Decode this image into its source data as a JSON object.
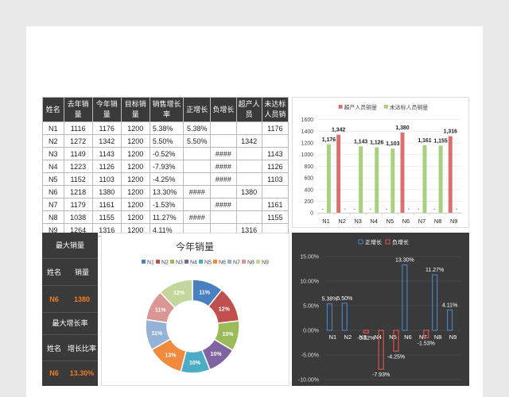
{
  "table": {
    "headers": [
      "姓名",
      "去年销量",
      "今年销量",
      "目标销量",
      "销售增长率",
      "正增长",
      "负增长",
      "超产人员",
      "未达标人员销"
    ],
    "rows": [
      [
        "N1",
        "1116",
        "1176",
        "1200",
        "5.38%",
        "5.38%",
        "",
        "",
        "1176"
      ],
      [
        "N2",
        "1272",
        "1342",
        "1200",
        "5.50%",
        "5.50%",
        "",
        "1342",
        ""
      ],
      [
        "N3",
        "1149",
        "1143",
        "1200",
        "-0.52%",
        "",
        "####",
        "",
        "1143"
      ],
      [
        "N4",
        "1223",
        "1126",
        "1200",
        "-7.93%",
        "",
        "####",
        "",
        "1126"
      ],
      [
        "N5",
        "1152",
        "1103",
        "1200",
        "-4.25%",
        "",
        "####",
        "",
        "1103"
      ],
      [
        "N6",
        "1218",
        "1380",
        "1200",
        "13.30%",
        "####",
        "",
        "1380",
        ""
      ],
      [
        "N7",
        "1179",
        "1161",
        "1200",
        "-1.53%",
        "",
        "####",
        "",
        "1161"
      ],
      [
        "N8",
        "1038",
        "1155",
        "1200",
        "11.27%",
        "####",
        "",
        "",
        "1155"
      ],
      [
        "N9",
        "1264",
        "1316",
        "1200",
        "4.11%",
        "",
        "",
        "1316",
        ""
      ]
    ]
  },
  "summary": {
    "max_sales_title": "最大销量",
    "max_growth_title": "最大增长率",
    "name_label": "姓名",
    "sales_label": "销量",
    "growth_label": "增长比率",
    "max_sales_name": "N6",
    "max_sales_value": "1380",
    "max_growth_name": "N6",
    "max_growth_value": "13.30%"
  },
  "chart_data": [
    {
      "id": "bar",
      "type": "bar",
      "categories": [
        "N1",
        "N2",
        "N3",
        "N4",
        "N5",
        "N6",
        "N7",
        "N8",
        "N9"
      ],
      "series": [
        {
          "name": "超产人员销量",
          "color": "#d9706f",
          "values": [
            0,
            1342,
            0,
            0,
            0,
            1380,
            0,
            0,
            1316
          ]
        },
        {
          "name": "未达标人员销量",
          "color": "#a9d07f",
          "values": [
            1176,
            0,
            1143,
            1126,
            1103,
            0,
            1161,
            1155,
            0
          ]
        }
      ],
      "data_labels": [
        "1,176",
        "1,342",
        "1,143",
        "1,126",
        "1,103",
        "1,380",
        "1,161",
        "1,155",
        "1,316"
      ],
      "zero_marks": [
        "-",
        "-",
        "-",
        "-",
        "-",
        "-",
        "-",
        "-",
        "-",
        "-",
        "-",
        "-",
        "-",
        "-",
        "-",
        "-",
        "-",
        "-"
      ],
      "yticks": [
        "0",
        "200",
        "400",
        "600",
        "800",
        "1000",
        "1200",
        "1400",
        "1600"
      ],
      "ylim": [
        0,
        1600
      ],
      "legend": "top"
    },
    {
      "id": "donut",
      "type": "pie",
      "title": "今年销量",
      "categories": [
        "N1",
        "N2",
        "N3",
        "N4",
        "N5",
        "N6",
        "N7",
        "N8",
        "N9"
      ],
      "values": [
        1176,
        1342,
        1143,
        1126,
        1103,
        1380,
        1161,
        1155,
        1316
      ],
      "labels": [
        "11%",
        "12%",
        "10%",
        "10%",
        "10%",
        "13%",
        "11%",
        "11%",
        "12%"
      ],
      "colors": [
        "#4a7fc1",
        "#c0504d",
        "#9bbb59",
        "#8064a2",
        "#4bacc6",
        "#f08a3c",
        "#95b3d7",
        "#d99694",
        "#c3d69b"
      ],
      "legend": "top"
    },
    {
      "id": "growth",
      "type": "bar",
      "categories": [
        "N1",
        "N2",
        "N3",
        "N4",
        "N5",
        "N6",
        "N7",
        "N8",
        "N9"
      ],
      "series": [
        {
          "name": "正增长",
          "color": "#4a7fc1",
          "values": [
            5.38,
            5.5,
            0,
            0,
            0,
            13.3,
            0,
            11.27,
            4.11
          ]
        },
        {
          "name": "负增长",
          "color": "#d9534f",
          "values": [
            0,
            0,
            -0.52,
            -7.93,
            -4.25,
            0,
            -1.53,
            0,
            0
          ]
        }
      ],
      "data_labels": [
        "5.38%",
        "5.50%",
        "-0.52%",
        "-7.93%",
        "-4.25%",
        "13.30%",
        "-1.53%",
        "11.27%",
        "4.11%"
      ],
      "yticks": [
        "15.00%",
        "10.00%",
        "5.00%",
        "0.00%",
        "-5.00%",
        "-10.00%"
      ],
      "ylim": [
        -10,
        15
      ],
      "legend": "top"
    }
  ]
}
